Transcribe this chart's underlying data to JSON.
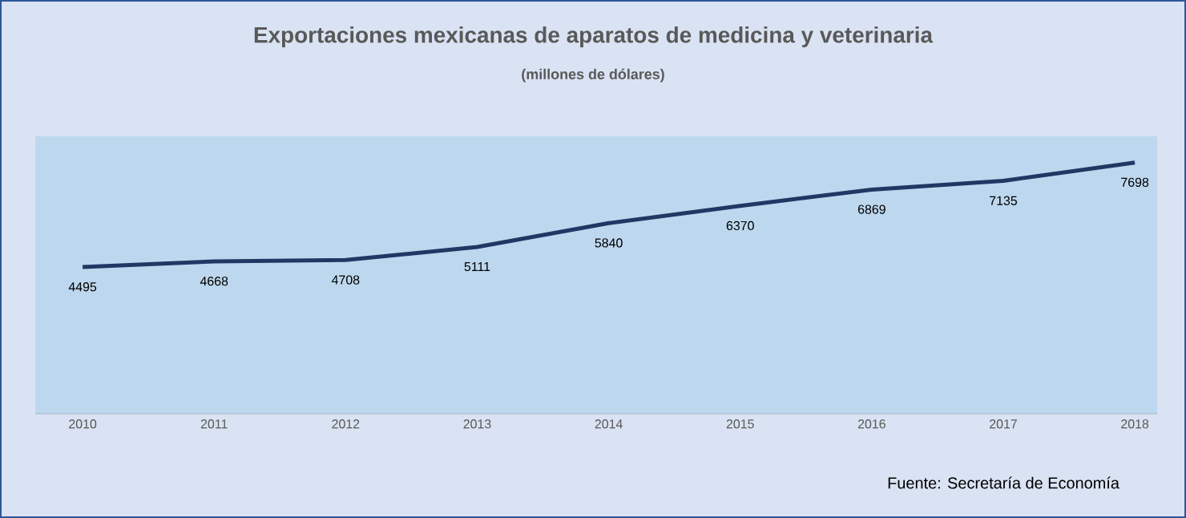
{
  "chart_data": {
    "type": "line",
    "title": "Exportaciones mexicanas de aparatos de medicina y veterinaria",
    "subtitle": "(millones de dólares)",
    "categories": [
      "2010",
      "2011",
      "2012",
      "2013",
      "2014",
      "2015",
      "2016",
      "2017",
      "2018"
    ],
    "values": [
      4495,
      4668,
      4708,
      5111,
      5840,
      6370,
      6869,
      7135,
      7698
    ],
    "color": "#1f3864",
    "ylim": [
      0,
      8500
    ],
    "tick_labels": "x",
    "data_labels": true,
    "marker": "none",
    "line_style": "solid",
    "annotations": [
      "Fuente: Secretaría de Economía"
    ]
  }
}
